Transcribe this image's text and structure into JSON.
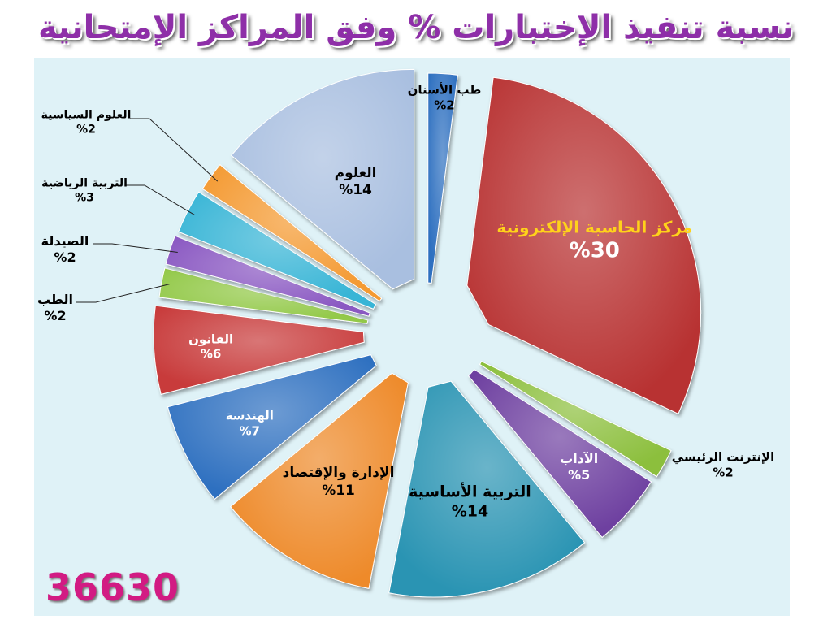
{
  "title": "نسبة تنفيذ الإختبارات % وفق المراكز الإمتحانية",
  "total": "36630",
  "chart_data": {
    "type": "pie",
    "title": "نسبة تنفيذ الإختبارات % وفق المراكز الإمتحانية",
    "slices": [
      {
        "name": "طب الأسنان",
        "value": 2,
        "label": "%2",
        "color": "#2e6fc0"
      },
      {
        "name": "مركز الحاسبة الإلكترونية",
        "value": 30,
        "label": "%30",
        "color": "#b83232"
      },
      {
        "name": "الإنترنت الرئيسي",
        "value": 2,
        "label": "%2",
        "color": "#8cbf3e"
      },
      {
        "name": "الآداب",
        "value": 5,
        "label": "%5",
        "color": "#6e3fa0"
      },
      {
        "name": "التربية الأساسية",
        "value": 14,
        "label": "%14",
        "color": "#2a94b3"
      },
      {
        "name": "الإدارة والإقتصاد",
        "value": 11,
        "label": "%11",
        "color": "#ee8a2b"
      },
      {
        "name": "الهندسة",
        "value": 7,
        "label": "%7",
        "color": "#2e6fc0"
      },
      {
        "name": "القانون",
        "value": 6,
        "label": "%6",
        "color": "#c83a3a"
      },
      {
        "name": "الطب",
        "value": 2,
        "label": "%2",
        "color": "#93c94a"
      },
      {
        "name": "الصيدلة",
        "value": 2,
        "label": "%2",
        "color": "#8a58c2"
      },
      {
        "name": "التربية الرياضية",
        "value": 3,
        "label": "%3",
        "color": "#38b5d6"
      },
      {
        "name": "العلوم السياسية",
        "value": 2,
        "label": "%2",
        "color": "#f49a32"
      },
      {
        "name": "العلوم",
        "value": 14,
        "label": "%14",
        "color": "#a9bfe0"
      }
    ],
    "legend": "none",
    "exploded": true
  }
}
